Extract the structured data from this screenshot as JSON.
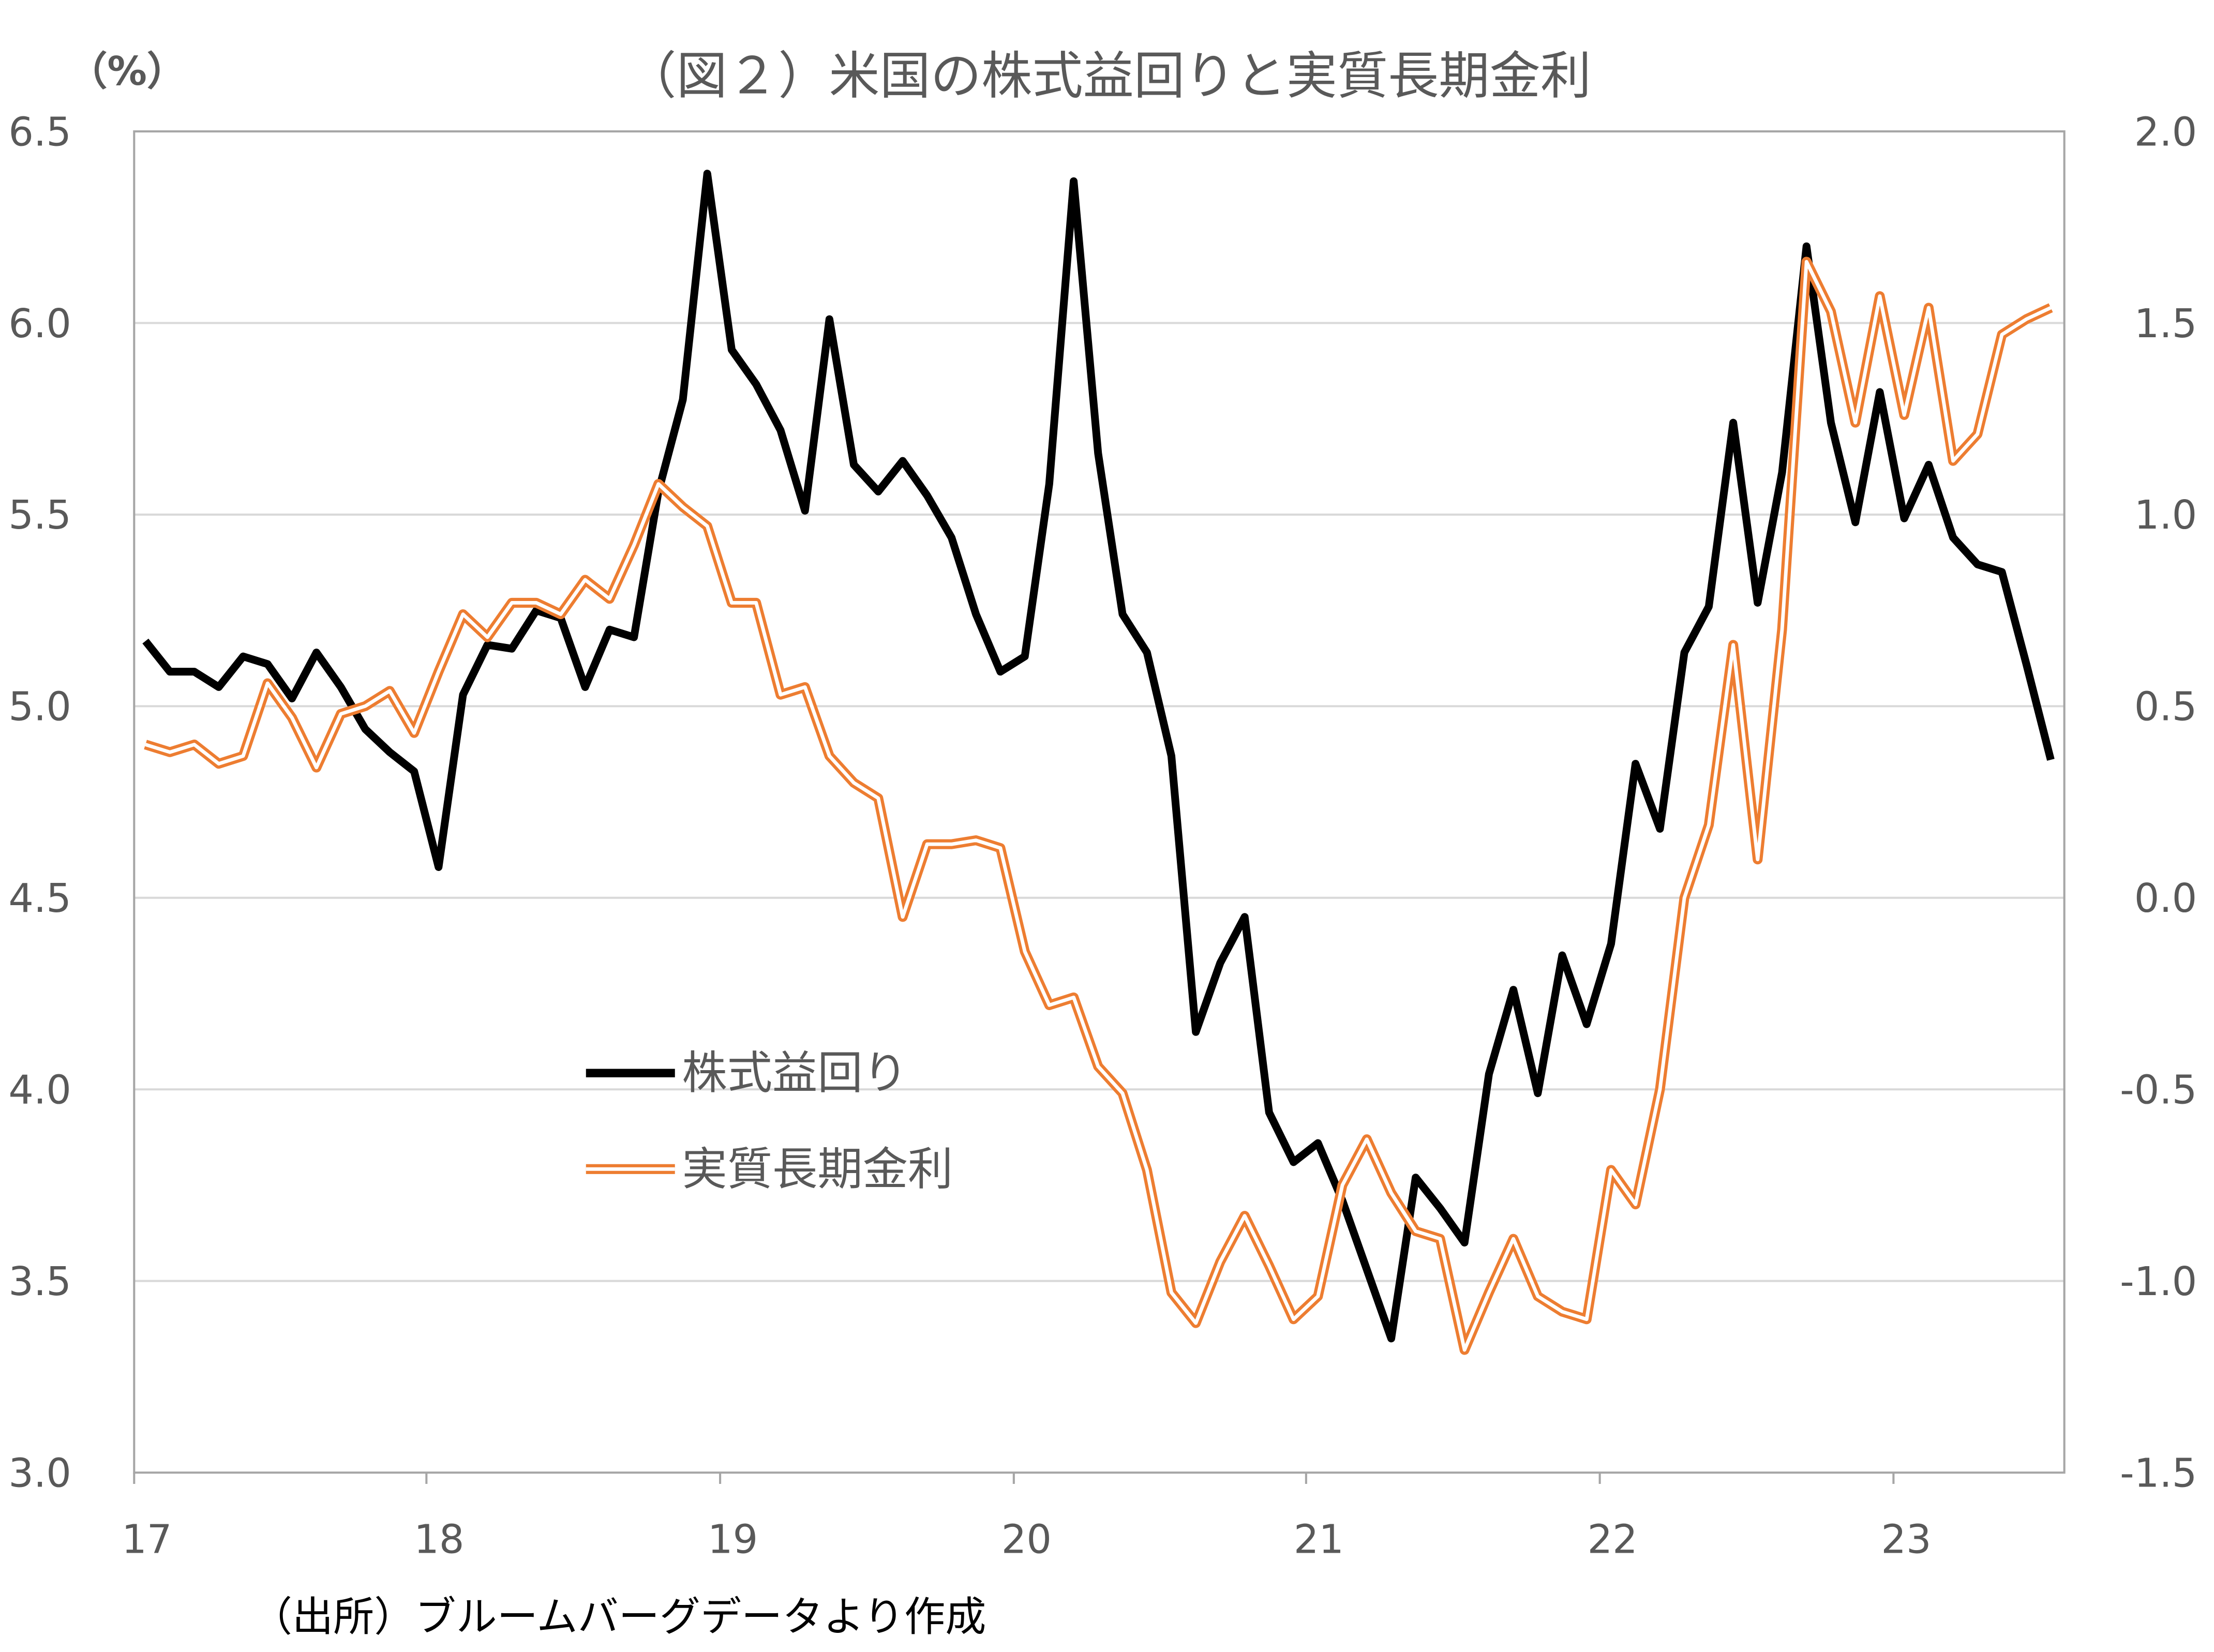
{
  "chart_data": {
    "type": "line",
    "title": "（図２）米国の株式益回りと実質長期金利",
    "left_unit_label": "（%）",
    "source": "（出所）ブルームバーグデータより作成",
    "x_tick_labels": [
      "17",
      "18",
      "19",
      "20",
      "21",
      "22",
      "23"
    ],
    "x_range": [
      "2017-01",
      "2023-07"
    ],
    "frequency": "monthly",
    "left_axis": {
      "ylim": [
        3.0,
        6.5
      ],
      "ticks": [
        "3.0",
        "3.5",
        "4.0",
        "4.5",
        "5.0",
        "5.5",
        "6.0",
        "6.5"
      ]
    },
    "right_axis": {
      "ylim": [
        -1.5,
        2.0
      ],
      "ticks": [
        "-1.5",
        "-1.0",
        "-0.5",
        "0.0",
        "0.5",
        "1.0",
        "1.5",
        "2.0"
      ]
    },
    "grid": true,
    "legend_placement": "center-left",
    "series": [
      {
        "name": "株式益回り",
        "axis": "left",
        "color": "#000000",
        "values": [
          5.17,
          5.09,
          5.09,
          5.05,
          5.13,
          5.11,
          5.02,
          5.14,
          5.05,
          4.94,
          4.88,
          4.83,
          4.58,
          5.03,
          5.16,
          5.15,
          5.25,
          5.23,
          5.05,
          5.2,
          5.18,
          5.56,
          5.8,
          6.39,
          5.93,
          5.84,
          5.72,
          5.51,
          6.01,
          5.63,
          5.56,
          5.64,
          5.55,
          5.44,
          5.24,
          5.09,
          5.13,
          5.58,
          6.37,
          5.66,
          5.24,
          5.14,
          4.87,
          4.15,
          4.33,
          4.45,
          3.94,
          3.81,
          3.86,
          3.71,
          3.53,
          3.35,
          3.77,
          3.69,
          3.6,
          4.04,
          4.26,
          3.99,
          4.35,
          4.17,
          4.38,
          4.85,
          4.68,
          5.14,
          5.26,
          5.74,
          5.27,
          5.61,
          6.2,
          5.74,
          5.48,
          5.82,
          5.49,
          5.63,
          5.44,
          5.37,
          5.35,
          5.11,
          4.86
        ]
      },
      {
        "name": "実質長期金利",
        "axis": "right",
        "color": "#ED7D31",
        "values": [
          0.4,
          0.38,
          0.4,
          0.35,
          0.37,
          0.56,
          0.47,
          0.34,
          0.48,
          0.5,
          0.54,
          0.43,
          0.59,
          0.74,
          0.68,
          0.77,
          0.77,
          0.74,
          0.83,
          0.78,
          0.92,
          1.08,
          1.02,
          0.97,
          0.77,
          0.77,
          0.53,
          0.55,
          0.37,
          0.3,
          0.26,
          -0.05,
          0.14,
          0.14,
          0.15,
          0.13,
          -0.14,
          -0.28,
          -0.26,
          -0.44,
          -0.51,
          -0.71,
          -1.03,
          -1.11,
          -0.95,
          -0.83,
          -0.96,
          -1.1,
          -1.04,
          -0.75,
          -0.63,
          -0.77,
          -0.87,
          -0.89,
          -1.18,
          -1.03,
          -0.89,
          -1.04,
          -1.08,
          -1.1,
          -0.71,
          -0.8,
          -0.5,
          0.0,
          0.19,
          0.66,
          0.1,
          0.7,
          1.66,
          1.53,
          1.24,
          1.57,
          1.26,
          1.54,
          1.14,
          1.21,
          1.47,
          1.51,
          1.54
        ]
      }
    ]
  }
}
